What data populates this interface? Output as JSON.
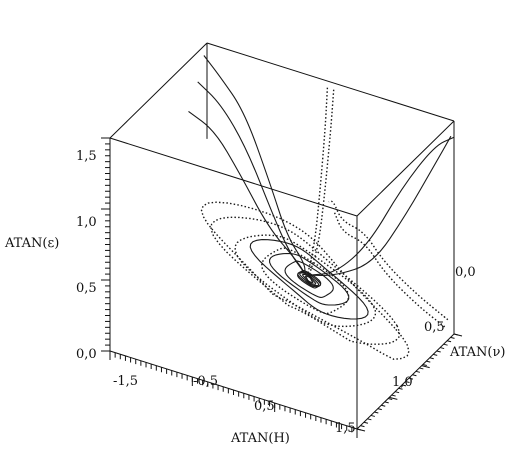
{
  "chart_data": {
    "type": "line",
    "projection": "3d",
    "title": "",
    "axes": {
      "x": {
        "label": "ATAN(H)",
        "ticks": [
          "-1,5",
          "-0,5",
          "0,5",
          "1,5"
        ],
        "range": [
          -1.57,
          1.57
        ]
      },
      "y": {
        "label": "ATAN(ν)",
        "ticks": [
          "0,0",
          "0,5",
          "1,0",
          "1,5"
        ],
        "range": [
          0,
          1.57
        ]
      },
      "z": {
        "label": "ATAN(ε)",
        "ticks": [
          "0,0",
          "0,5",
          "1,0",
          "1,5"
        ],
        "range": [
          0,
          1.57
        ]
      }
    },
    "grid": false,
    "legend": "none",
    "series": [
      {
        "style": "solid",
        "points": [
          [
            -1.57,
            0.05,
            1.5
          ],
          [
            -1.3,
            0.15,
            1.45
          ],
          [
            -0.9,
            0.25,
            1.3
          ],
          [
            -0.5,
            0.35,
            0.9
          ],
          [
            -0.2,
            0.45,
            0.6
          ],
          [
            0.1,
            0.55,
            0.5
          ],
          [
            0.15,
            0.6,
            0.45
          ]
        ]
      },
      {
        "style": "solid",
        "points": [
          [
            -1.57,
            0.15,
            1.35
          ],
          [
            -1.2,
            0.25,
            1.3
          ],
          [
            -0.8,
            0.35,
            1.1
          ],
          [
            -0.4,
            0.45,
            0.75
          ],
          [
            -0.1,
            0.55,
            0.55
          ],
          [
            0.15,
            0.6,
            0.45
          ]
        ]
      },
      {
        "style": "solid",
        "points": [
          [
            -1.57,
            0.3,
            1.2
          ],
          [
            -1.2,
            0.35,
            1.15
          ],
          [
            -0.8,
            0.45,
            0.95
          ],
          [
            -0.4,
            0.5,
            0.65
          ],
          [
            0.0,
            0.55,
            0.5
          ],
          [
            0.15,
            0.6,
            0.45
          ]
        ]
      },
      {
        "style": "solid",
        "points": [
          [
            1.57,
            0.0,
            1.45
          ],
          [
            1.4,
            0.1,
            1.4
          ],
          [
            1.1,
            0.25,
            1.1
          ],
          [
            0.8,
            0.4,
            0.7
          ],
          [
            0.5,
            0.55,
            0.5
          ],
          [
            0.2,
            0.6,
            0.45
          ]
        ]
      },
      {
        "style": "solid",
        "points": [
          [
            1.57,
            0.05,
            1.48
          ],
          [
            1.45,
            0.15,
            1.3
          ],
          [
            1.2,
            0.3,
            0.95
          ],
          [
            0.9,
            0.45,
            0.6
          ],
          [
            0.5,
            0.55,
            0.48
          ],
          [
            0.2,
            0.6,
            0.45
          ]
        ]
      },
      {
        "style": "dotted",
        "points": [
          [
            0.0,
            0.05,
            1.55
          ],
          [
            0.05,
            0.15,
            1.3
          ],
          [
            0.1,
            0.3,
            0.9
          ],
          [
            0.15,
            0.45,
            0.6
          ],
          [
            0.18,
            0.6,
            0.45
          ]
        ]
      },
      {
        "style": "dotted",
        "points": [
          [
            0.08,
            0.05,
            1.55
          ],
          [
            0.12,
            0.15,
            1.3
          ],
          [
            0.16,
            0.3,
            0.9
          ],
          [
            0.2,
            0.45,
            0.6
          ],
          [
            0.2,
            0.6,
            0.45
          ]
        ]
      },
      {
        "style": "dotted",
        "points": [
          [
            1.57,
            0.1,
            0.15
          ],
          [
            1.3,
            0.25,
            0.35
          ],
          [
            1.0,
            0.4,
            0.6
          ],
          [
            0.9,
            0.6,
            0.9
          ],
          [
            0.85,
            0.9,
            1.1
          ],
          [
            0.9,
            1.1,
            1.35
          ],
          [
            1.0,
            1.3,
            1.45
          ]
        ]
      },
      {
        "style": "dotted",
        "points": [
          [
            1.57,
            0.15,
            0.12
          ],
          [
            1.35,
            0.3,
            0.3
          ],
          [
            1.05,
            0.45,
            0.55
          ],
          [
            0.95,
            0.65,
            0.85
          ],
          [
            0.9,
            0.95,
            1.05
          ],
          [
            0.95,
            1.15,
            1.3
          ]
        ]
      }
    ],
    "cycles": [
      {
        "style": "solid",
        "center": [
          0.2,
          0.6,
          0.42
        ],
        "radii": [
          0.12,
          0.1,
          0.08,
          0.06,
          0.04
        ]
      },
      {
        "style": "solid",
        "center": [
          0.2,
          0.6,
          0.42
        ],
        "radii": [
          0.25,
          0.35,
          0.5
        ]
      },
      {
        "style": "dotted",
        "center": [
          0.15,
          0.6,
          0.4
        ],
        "radii": [
          0.45,
          0.62,
          0.8,
          0.95
        ]
      }
    ]
  }
}
